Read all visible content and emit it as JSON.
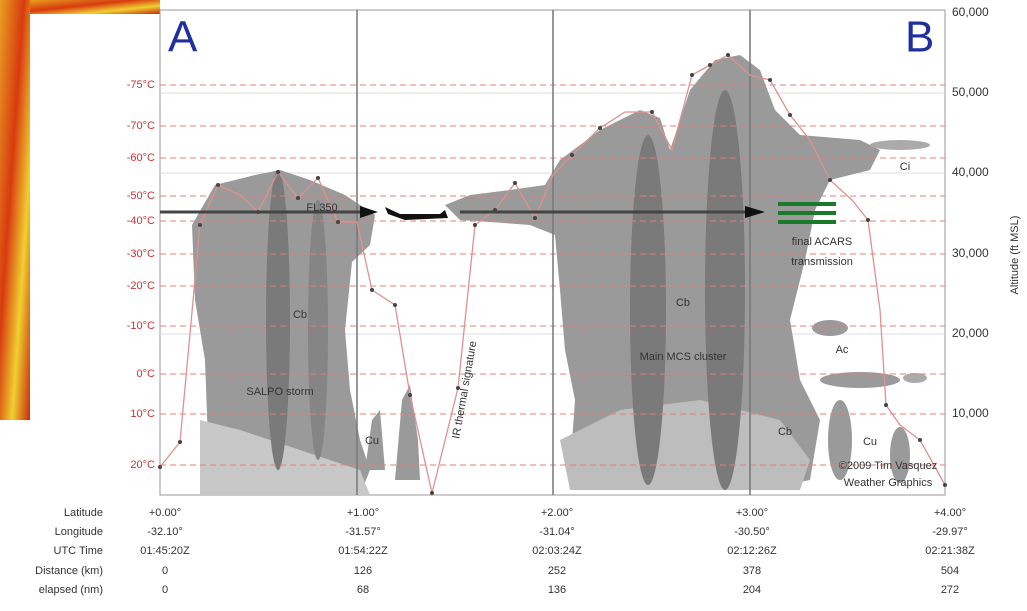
{
  "header": {
    "left_point": "A",
    "right_point": "B"
  },
  "altitude_axis": {
    "title": "Altitude (ft MSL)",
    "labels": [
      "60,000",
      "50,000",
      "40,000",
      "30,000",
      "20,000",
      "10,000"
    ]
  },
  "temperature_labels": [
    "-75°C",
    "-70°C",
    "-60°C",
    "-50°C",
    "-40°C",
    "-30°C",
    "-20°C",
    "-10°C",
    "0°C",
    "10°C",
    "20°C"
  ],
  "annotations": {
    "salpo_cb": "Cb",
    "salpo_storm": "SALPO storm",
    "flight_level": "FL350",
    "cu_left": "Cu",
    "ir_signature": "IR thermal signature",
    "main_cb": "Cb",
    "main_cluster": "Main MCS cluster",
    "acars_1": "final ACARS",
    "acars_2": "transmission",
    "ci": "Ci",
    "ac": "Ac",
    "cb_right": "Cb",
    "cu_right": "Cu",
    "credit_1": "©2009 Tim Vasquez",
    "credit_2": "Weather Graphics"
  },
  "table": {
    "row_labels": [
      "Latitude",
      "Longitude",
      "UTC Time",
      "Distance (km)",
      "elapsed (nm)"
    ],
    "rows": [
      [
        "+0.00°",
        "+1.00°",
        "+2.00°",
        "+3.00°",
        "+4.00°"
      ],
      [
        "-32.10°",
        "-31.57°",
        "-31.04°",
        "-30.50°",
        "-29.97°"
      ],
      [
        "01:45:20Z",
        "01:54:22Z",
        "02:03:24Z",
        "02:12:26Z",
        "02:21:38Z"
      ],
      [
        "0",
        "126",
        "252",
        "378",
        "504"
      ],
      [
        "0",
        "68",
        "136",
        "204",
        "272"
      ]
    ]
  }
}
